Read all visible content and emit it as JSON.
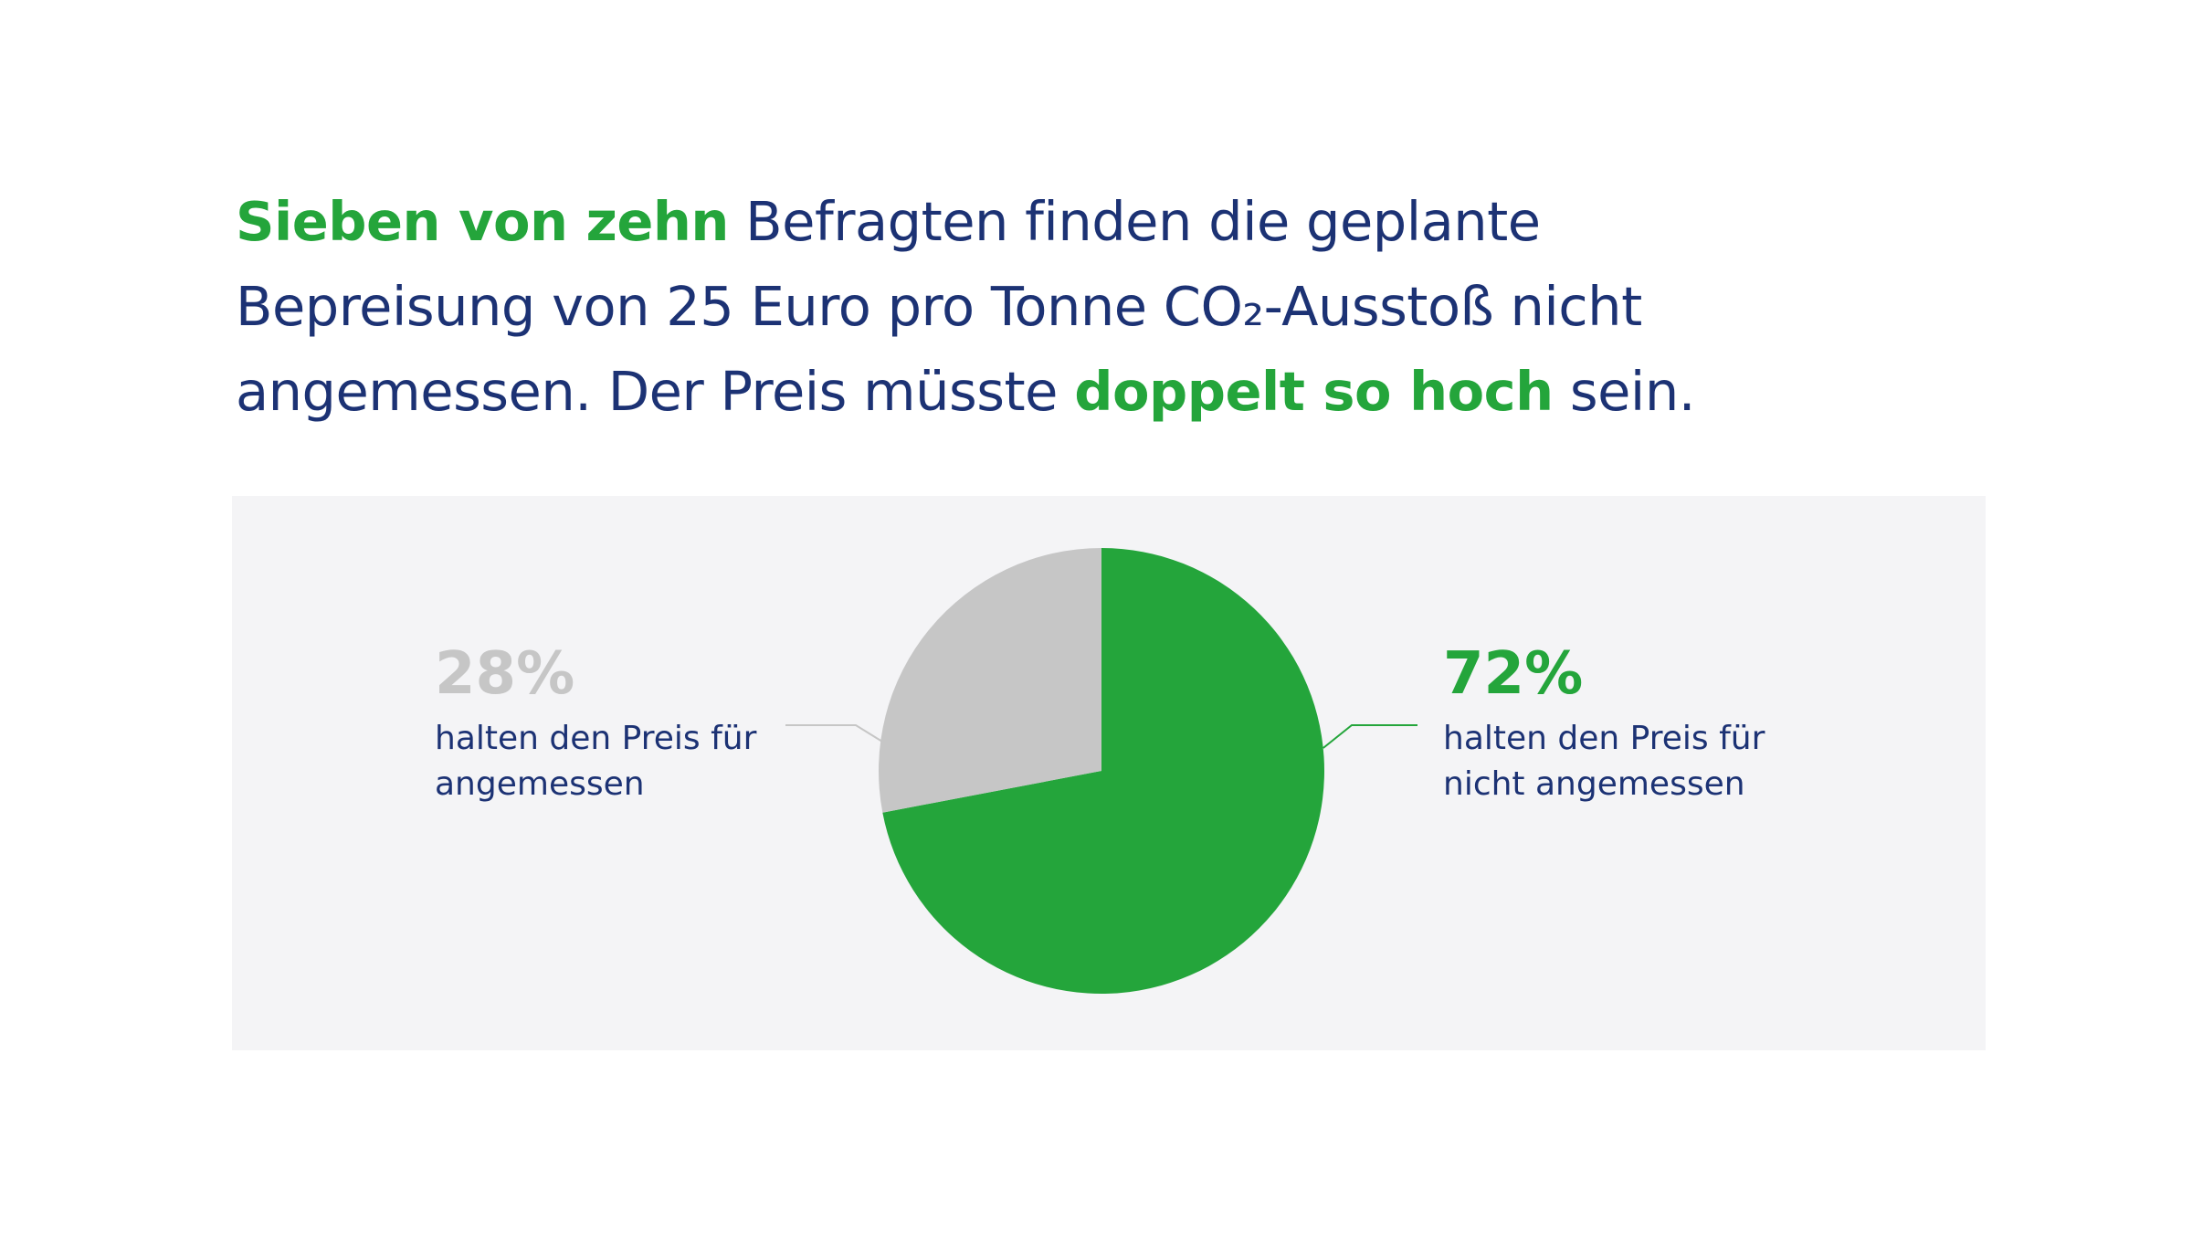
{
  "headline": {
    "seg1": "Sieben von zehn",
    "seg2": " Befragten finden die geplante",
    "seg3": "Bepreisung von 25 Euro pro Tonne CO₂-Ausstoß nicht",
    "seg4": "angemessen. Der Preis müsste ",
    "seg5": "doppelt so hoch",
    "seg6": " sein."
  },
  "colors": {
    "text": "#1c3274",
    "accent": "#24a53b",
    "grey": "#c6c6c6",
    "panel": "#f4f4f6"
  },
  "chart_data": {
    "type": "pie",
    "start_angle_deg": 0,
    "direction": "clockwise",
    "slices": [
      {
        "value": 72,
        "value_label": "72%",
        "label_line1": "halten den Preis für",
        "label_line2": "nicht angemessen",
        "color": "#24a53b",
        "text_color": "#24a53b"
      },
      {
        "value": 28,
        "value_label": "28%",
        "label_line1": "halten den Preis für",
        "label_line2": "angemessen",
        "color": "#c6c6c6",
        "text_color": "#c6c6c6"
      }
    ]
  }
}
